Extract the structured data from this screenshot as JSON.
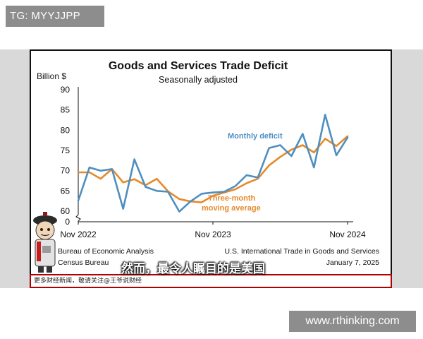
{
  "overlay_tag": "TG: MYYJJPP",
  "subtitle_caption": "然而，最令人瞩目的是美国",
  "footer_text": "更多财经新闻，敬请关注@王爷说财经",
  "watermark": "www.rthinking.com",
  "colors": {
    "monthly": "#4f8fc0",
    "average": "#e58a2b",
    "annotation_blue": "#4f8fc0",
    "annotation_orange": "#e58a2b",
    "footer_border": "#b00000"
  },
  "chart_data": {
    "type": "line",
    "title": "Goods and Services Trade Deficit",
    "subtitle": "Seasonally adjusted",
    "ylabel": "Billion $",
    "ylim": [
      0,
      90
    ],
    "yticks": [
      0,
      60,
      65,
      70,
      75,
      80,
      85,
      90
    ],
    "axis_break": true,
    "x": [
      "2022-11",
      "2022-12",
      "2023-01",
      "2023-02",
      "2023-03",
      "2023-04",
      "2023-05",
      "2023-06",
      "2023-07",
      "2023-08",
      "2023-09",
      "2023-10",
      "2023-11",
      "2023-12",
      "2024-01",
      "2024-02",
      "2024-03",
      "2024-04",
      "2024-05",
      "2024-06",
      "2024-07",
      "2024-08",
      "2024-09",
      "2024-10",
      "2024-11"
    ],
    "xtick_labels": [
      {
        "x": "2022-11",
        "label": "Nov 2022"
      },
      {
        "x": "2023-11",
        "label": "Nov 2023"
      },
      {
        "x": "2024-11",
        "label": "Nov 2024"
      }
    ],
    "series": [
      {
        "name": "Monthly deficit",
        "values": [
          62.6,
          70.8,
          70.0,
          70.4,
          60.6,
          72.8,
          66.0,
          65.0,
          64.8,
          59.9,
          62.4,
          64.3,
          64.6,
          64.8,
          66.2,
          68.9,
          68.3,
          75.6,
          76.3,
          73.6,
          79.1,
          70.8,
          83.8,
          73.8,
          78.2
        ]
      },
      {
        "name": "Three-month moving average",
        "values": [
          69.6,
          69.6,
          68.0,
          70.4,
          67.1,
          67.9,
          66.4,
          68.0,
          64.9,
          63.0,
          62.4,
          62.2,
          63.8,
          64.6,
          65.4,
          66.9,
          68.0,
          71.3,
          73.4,
          75.2,
          76.3,
          74.5,
          77.9,
          76.1,
          78.5
        ]
      }
    ],
    "annotations": {
      "monthly_label": "Monthly deficit",
      "average_label_line1": "Three-month",
      "average_label_line2": "moving average"
    },
    "source_left_line1": "Bureau of Economic Analysis",
    "source_left_line2": "Census Bureau",
    "source_right_line1": "U.S. International Trade in Goods and Services",
    "source_right_line2": "January 7, 2025",
    "grid": false,
    "legend": "inline-annotations"
  }
}
